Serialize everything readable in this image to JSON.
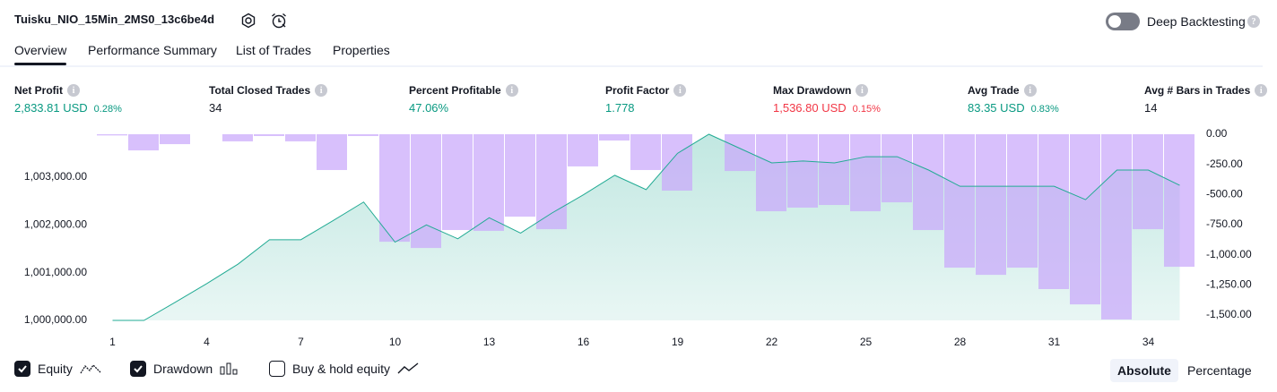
{
  "header": {
    "title": "Tuisku_NIO_15Min_2MS0_13c6be4d",
    "toggle_label": "Deep Backtesting",
    "toggle_on": false
  },
  "tabs": {
    "items": [
      "Overview",
      "Performance Summary",
      "List of Trades",
      "Properties"
    ],
    "active": 0
  },
  "stats": [
    {
      "label": "Net Profit",
      "value": "2,833.81 USD",
      "percent": "0.28%",
      "color": "#089981"
    },
    {
      "label": "Total Closed Trades",
      "value": "34",
      "color": "#131722"
    },
    {
      "label": "Percent Profitable",
      "value": "47.06%",
      "color": "#089981"
    },
    {
      "label": "Profit Factor",
      "value": "1.778",
      "color": "#089981"
    },
    {
      "label": "Max Drawdown",
      "value": "1,536.80 USD",
      "percent": "0.15%",
      "color": "#f23645"
    },
    {
      "label": "Avg Trade",
      "value": "83.35 USD",
      "percent": "0.83%",
      "color": "#089981"
    },
    {
      "label": "Avg # Bars in Trades",
      "value": "14",
      "color": "#131722"
    }
  ],
  "chart_data": {
    "type": "combo",
    "x": [
      1,
      2,
      3,
      4,
      5,
      6,
      7,
      8,
      9,
      10,
      11,
      12,
      13,
      14,
      15,
      16,
      17,
      18,
      19,
      20,
      21,
      22,
      23,
      24,
      25,
      26,
      27,
      28,
      29,
      30,
      31,
      32,
      33,
      34,
      35
    ],
    "series": [
      {
        "name": "Equity",
        "type": "area",
        "axis": "y",
        "color": "#22ab94",
        "checked": true,
        "values": [
          1000000,
          1000000,
          1000380,
          1000770,
          1001180,
          1001690,
          1001690,
          1002080,
          1002480,
          1001640,
          1002000,
          1001710,
          1002150,
          1001830,
          1002250,
          1002630,
          1003040,
          1002740,
          1003500,
          1003900,
          1003600,
          1003300,
          1003340,
          1003300,
          1003430,
          1003430,
          1003150,
          1002810,
          1002810,
          1002810,
          1002810,
          1002530,
          1003150,
          1003150,
          1002830
        ]
      },
      {
        "name": "Drawdown",
        "type": "bar",
        "axis": "y2",
        "color": "#c9a8fb",
        "checked": true,
        "values": [
          -10,
          -134,
          -82,
          0,
          -59,
          -15,
          -59,
          -297,
          -15,
          -892,
          -944,
          -795,
          -802,
          -684,
          -788,
          -267,
          -52,
          -297,
          -468,
          0,
          -305,
          -639,
          -609,
          -587,
          -639,
          -565,
          -795,
          -1107,
          -1167,
          -1107,
          -1285,
          -1412,
          -1537,
          -788,
          -1100
        ]
      }
    ],
    "extra_legend": {
      "label": "Buy & hold equity",
      "checked": false
    },
    "xlim": [
      0.5,
      35.5
    ],
    "xticks": [
      1,
      4,
      7,
      10,
      13,
      16,
      19,
      22,
      25,
      28,
      31,
      34
    ],
    "ylim": [
      1000000,
      1003900
    ],
    "yticks": [
      {
        "value": 1000000,
        "label": "1,000,000.00"
      },
      {
        "value": 1001000,
        "label": "1,001,000.00"
      },
      {
        "value": 1002000,
        "label": "1,002,000.00"
      },
      {
        "value": 1003000,
        "label": "1,003,000.00"
      }
    ],
    "y2lim": [
      -1545,
      0
    ],
    "y2ticks": [
      {
        "value": 0,
        "label": "0.00"
      },
      {
        "value": -250,
        "label": "-250.00"
      },
      {
        "value": -500,
        "label": "-500.00"
      },
      {
        "value": -750,
        "label": "-750.00"
      },
      {
        "value": -1000,
        "label": "-1,000.00"
      },
      {
        "value": -1250,
        "label": "-1,250.00"
      },
      {
        "value": -1500,
        "label": "-1,500.00"
      }
    ],
    "grid": false
  },
  "view_modes": {
    "items": [
      "Absolute",
      "Percentage"
    ],
    "active": 0
  }
}
